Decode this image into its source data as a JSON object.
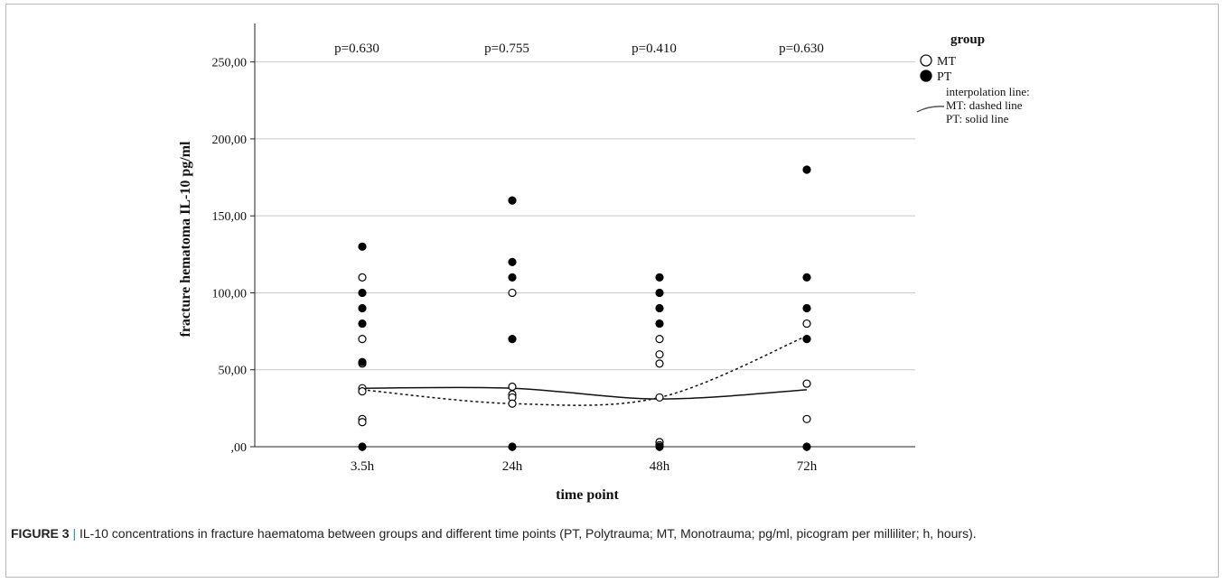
{
  "chart_data": {
    "type": "scatter",
    "xlabel": "time point",
    "ylabel": "fracture hematoma IL-10 pg/ml",
    "categories": [
      "3.5h",
      "24h",
      "48h",
      "72h"
    ],
    "ylim": [
      0,
      275
    ],
    "yticks": [
      0,
      50,
      100,
      150,
      200,
      250
    ],
    "ytick_labels": [
      ",00",
      "50,00",
      "100,00",
      "150,00",
      "200,00",
      "250,00"
    ],
    "grid": "horizontal",
    "p_values": [
      "p=0.630",
      "p=0.755",
      "p=0.410",
      "p=0.630"
    ],
    "legend": {
      "position": "top-right",
      "title": "group",
      "items": [
        {
          "label": "MT",
          "marker": "open-circle"
        },
        {
          "label": "PT",
          "marker": "filled-circle"
        }
      ],
      "note_lines": [
        "interpolation line:",
        "MT: dashed line",
        "PT: solid line"
      ]
    },
    "series": [
      {
        "name": "MT",
        "marker": "open-circle",
        "points": [
          [
            0,
            110
          ],
          [
            0,
            70
          ],
          [
            0,
            54
          ],
          [
            0,
            38
          ],
          [
            0,
            36
          ],
          [
            0,
            18
          ],
          [
            0,
            16
          ],
          [
            1,
            100
          ],
          [
            1,
            39
          ],
          [
            1,
            34
          ],
          [
            1,
            32
          ],
          [
            1,
            28
          ],
          [
            2,
            70
          ],
          [
            2,
            60
          ],
          [
            2,
            54
          ],
          [
            2,
            32
          ],
          [
            2,
            3
          ],
          [
            2,
            1
          ],
          [
            3,
            80
          ],
          [
            3,
            41
          ],
          [
            3,
            18
          ]
        ],
        "interpolation": {
          "style": "dashed",
          "values": [
            37,
            28,
            32,
            72
          ]
        }
      },
      {
        "name": "PT",
        "marker": "filled-circle",
        "points": [
          [
            0,
            130
          ],
          [
            0,
            100
          ],
          [
            0,
            90
          ],
          [
            0,
            80
          ],
          [
            0,
            55
          ],
          [
            0,
            0
          ],
          [
            1,
            160
          ],
          [
            1,
            120
          ],
          [
            1,
            110
          ],
          [
            1,
            70
          ],
          [
            1,
            0
          ],
          [
            2,
            110
          ],
          [
            2,
            100
          ],
          [
            2,
            90
          ],
          [
            2,
            80
          ],
          [
            2,
            0
          ],
          [
            3,
            180
          ],
          [
            3,
            110
          ],
          [
            3,
            90
          ],
          [
            3,
            70
          ],
          [
            3,
            0
          ]
        ],
        "interpolation": {
          "style": "solid",
          "values": [
            38,
            38,
            31,
            37
          ]
        }
      }
    ]
  },
  "caption": {
    "label": "FIGURE 3",
    "text": "IL-10 concentrations in fracture haematoma between groups and different time points (PT, Polytrauma; MT, Monotrauma; pg/ml, picogram per milliliter; h, hours)."
  }
}
